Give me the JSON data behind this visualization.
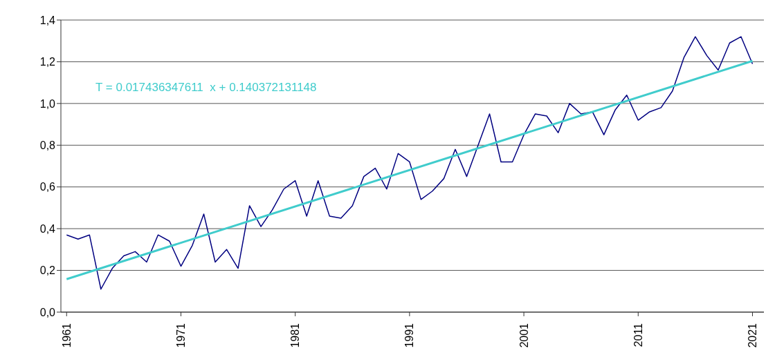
{
  "chart_data": {
    "type": "line",
    "x": [
      1961,
      1962,
      1963,
      1964,
      1965,
      1966,
      1967,
      1968,
      1969,
      1970,
      1971,
      1972,
      1973,
      1974,
      1975,
      1976,
      1977,
      1978,
      1979,
      1980,
      1981,
      1982,
      1983,
      1984,
      1985,
      1986,
      1987,
      1988,
      1989,
      1990,
      1991,
      1992,
      1993,
      1994,
      1995,
      1996,
      1997,
      1998,
      1999,
      2000,
      2001,
      2002,
      2003,
      2004,
      2005,
      2006,
      2007,
      2008,
      2009,
      2010,
      2011,
      2012,
      2013,
      2014,
      2015,
      2016,
      2017,
      2018,
      2019,
      2020,
      2021
    ],
    "series": [
      {
        "color": "#000080",
        "values": [
          0.37,
          0.35,
          0.37,
          0.11,
          0.21,
          0.27,
          0.29,
          0.24,
          0.37,
          0.34,
          0.22,
          0.32,
          0.47,
          0.24,
          0.3,
          0.21,
          0.51,
          0.41,
          0.49,
          0.59,
          0.63,
          0.46,
          0.63,
          0.46,
          0.45,
          0.51,
          0.65,
          0.69,
          0.59,
          0.76,
          0.72,
          0.54,
          0.58,
          0.64,
          0.78,
          0.65,
          0.8,
          0.95,
          0.72,
          0.72,
          0.85,
          0.95,
          0.94,
          0.86,
          1.0,
          0.95,
          0.96,
          0.85,
          0.97,
          1.04,
          0.92,
          0.96,
          0.98,
          1.06,
          1.22,
          1.32,
          1.23,
          1.16,
          1.29,
          1.32,
          1.19
        ]
      },
      {
        "type": "line",
        "color": "#40cccc",
        "x": [
          1961,
          2021
        ],
        "values": [
          0.158,
          1.204
        ]
      }
    ],
    "xlim": [
      1960.5,
      2022
    ],
    "xticks": [
      1961,
      1971,
      1981,
      1991,
      2001,
      2011,
      2021
    ],
    "ylim": [
      0,
      1.4
    ],
    "yticks": [
      {
        "value": 0,
        "label": "0,0"
      },
      {
        "value": 0.2,
        "label": "0,2"
      },
      {
        "value": 0.4,
        "label": "0,4"
      },
      {
        "value": 0.6,
        "label": "0,6"
      },
      {
        "value": 0.8,
        "label": "0,8"
      },
      {
        "value": 1.0,
        "label": "1,0"
      },
      {
        "value": 1.2,
        "label": "1,2"
      },
      {
        "value": 1.4,
        "label": "1,4"
      }
    ],
    "grid": "y",
    "marker": "none",
    "annotations": [
      "T = 0.017436347611  x + 0.140372131148"
    ]
  }
}
